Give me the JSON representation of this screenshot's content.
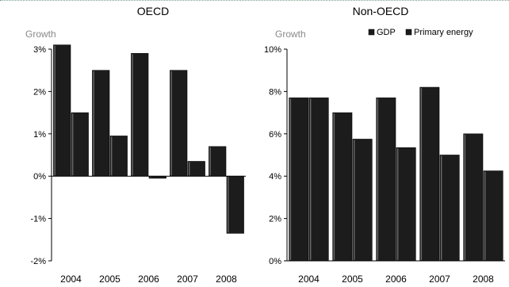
{
  "chart_data": [
    {
      "type": "bar",
      "title": "OECD",
      "ylabel": "Growth",
      "categories": [
        "2004",
        "2005",
        "2006",
        "2007",
        "2008"
      ],
      "series": [
        {
          "name": "GDP",
          "values": [
            3.1,
            2.5,
            2.9,
            2.5,
            0.7
          ]
        },
        {
          "name": "Primary energy",
          "values": [
            1.5,
            0.95,
            -0.05,
            0.35,
            -1.35
          ]
        }
      ],
      "ylim": [
        -2,
        3
      ],
      "yticks": [
        {
          "value": -2,
          "label": "-2%"
        },
        {
          "value": -1,
          "label": "-1%"
        },
        {
          "value": 0,
          "label": "0%"
        },
        {
          "value": 1,
          "label": "1%"
        },
        {
          "value": 2,
          "label": "2%"
        },
        {
          "value": 3,
          "label": "3%"
        }
      ],
      "grid": false,
      "legend": "none"
    },
    {
      "type": "bar",
      "title": "Non-OECD",
      "ylabel": "Growth",
      "categories": [
        "2004",
        "2005",
        "2006",
        "2007",
        "2008"
      ],
      "series": [
        {
          "name": "GDP",
          "values": [
            7.7,
            7.0,
            7.7,
            8.2,
            6.0
          ]
        },
        {
          "name": "Primary energy",
          "values": [
            7.7,
            5.75,
            5.35,
            5.0,
            4.25
          ]
        }
      ],
      "ylim": [
        0,
        10
      ],
      "yticks": [
        {
          "value": 0,
          "label": "0%"
        },
        {
          "value": 2,
          "label": "2%"
        },
        {
          "value": 4,
          "label": "4%"
        },
        {
          "value": 6,
          "label": "6%"
        },
        {
          "value": 8,
          "label": "8%"
        },
        {
          "value": 10,
          "label": "10%"
        }
      ],
      "grid": false,
      "legend": "top-right"
    }
  ],
  "colors": {
    "gdp": "#1c1c1c",
    "primary_energy": "#1c1c1c",
    "bar_highlight": "#6a6a6a",
    "axis": "#000000"
  }
}
